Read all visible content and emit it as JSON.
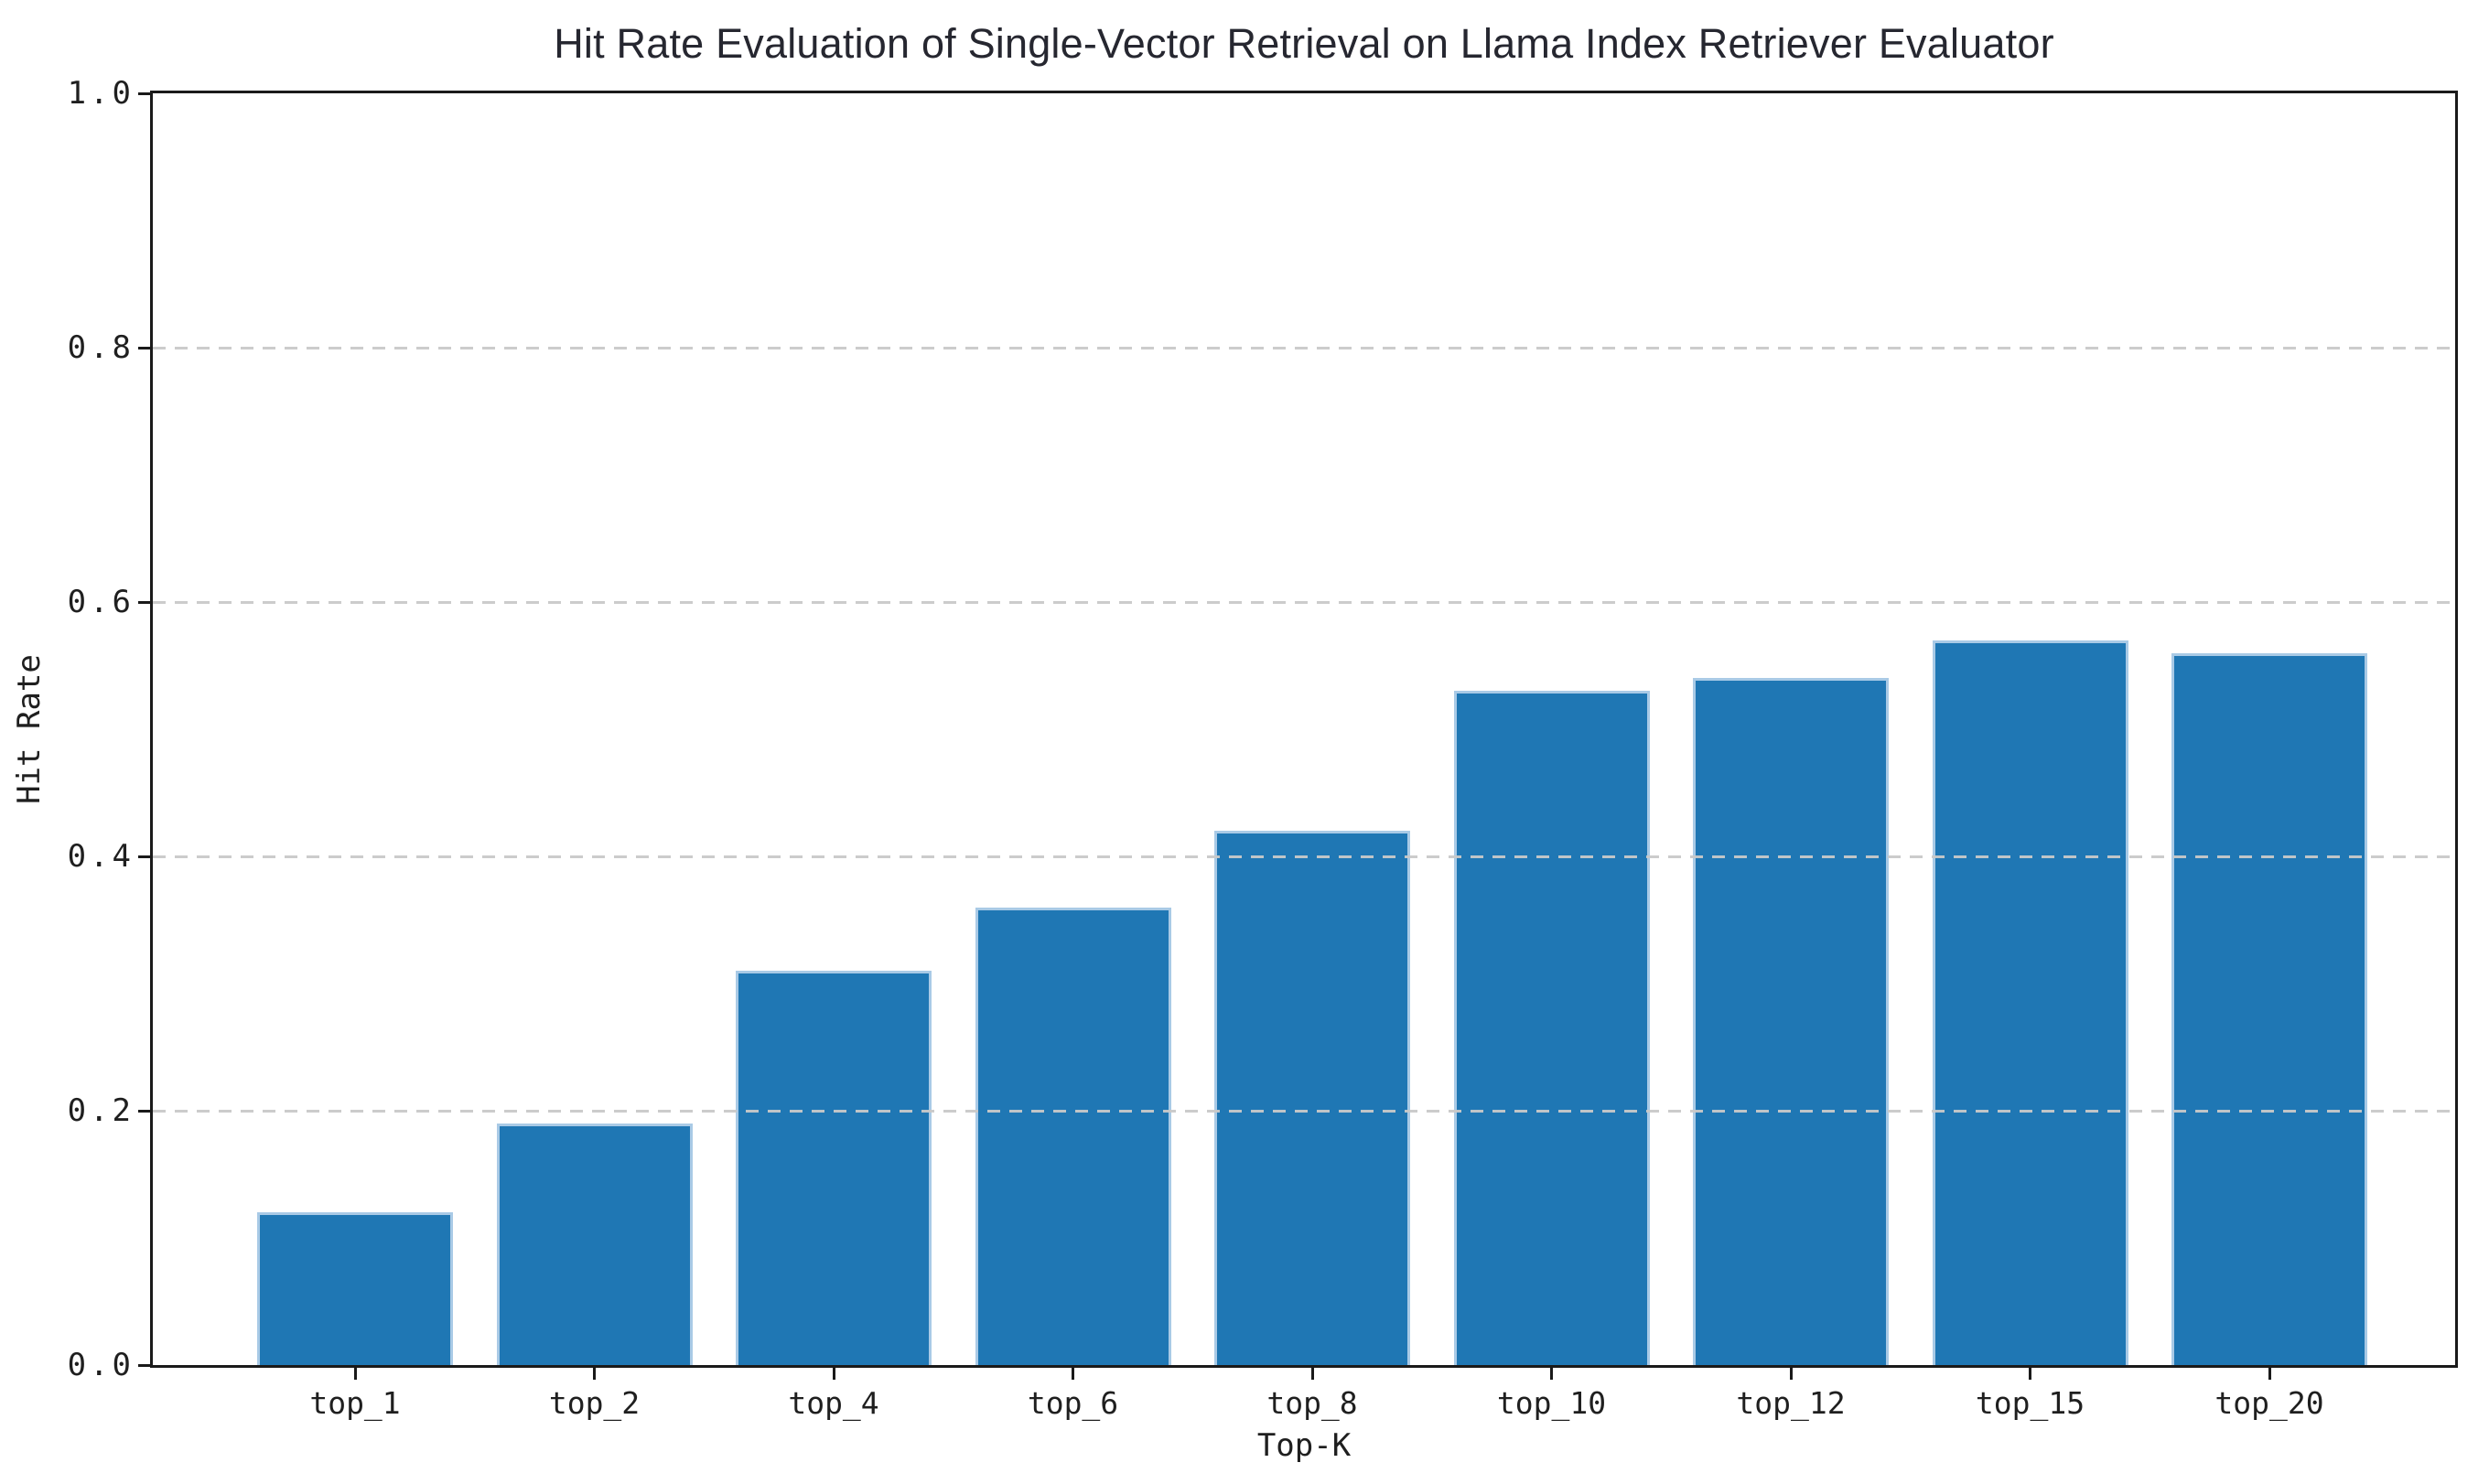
{
  "chart_data": {
    "type": "bar",
    "title": "Hit Rate Evaluation of Single-Vector Retrieval on Llama Index Retriever Evaluator",
    "xlabel": "Top-K",
    "ylabel": "Hit Rate",
    "categories": [
      "top_1",
      "top_2",
      "top_4",
      "top_6",
      "top_8",
      "top_10",
      "top_12",
      "top_15",
      "top_20"
    ],
    "values": [
      0.12,
      0.19,
      0.31,
      0.36,
      0.42,
      0.53,
      0.54,
      0.57,
      0.56
    ],
    "ylim": [
      0.0,
      1.0
    ],
    "yticks": [
      0.0,
      0.2,
      0.4,
      0.6,
      0.8,
      1.0
    ],
    "ytick_labels": [
      "0.0",
      "0.2",
      "0.4",
      "0.6",
      "0.8",
      "1.0"
    ],
    "grid": {
      "horizontal": true,
      "style": "dashed",
      "drawn_above_bars": true
    },
    "legend": "none",
    "colors": {
      "bar_fill": "#1f77b4",
      "bar_edge": "#a9cae6",
      "grid": "#c9c9c9",
      "axis": "#1a1a1a",
      "tick_text": "#1f1f1f",
      "title_text": "#262730",
      "background": "#ffffff"
    }
  }
}
